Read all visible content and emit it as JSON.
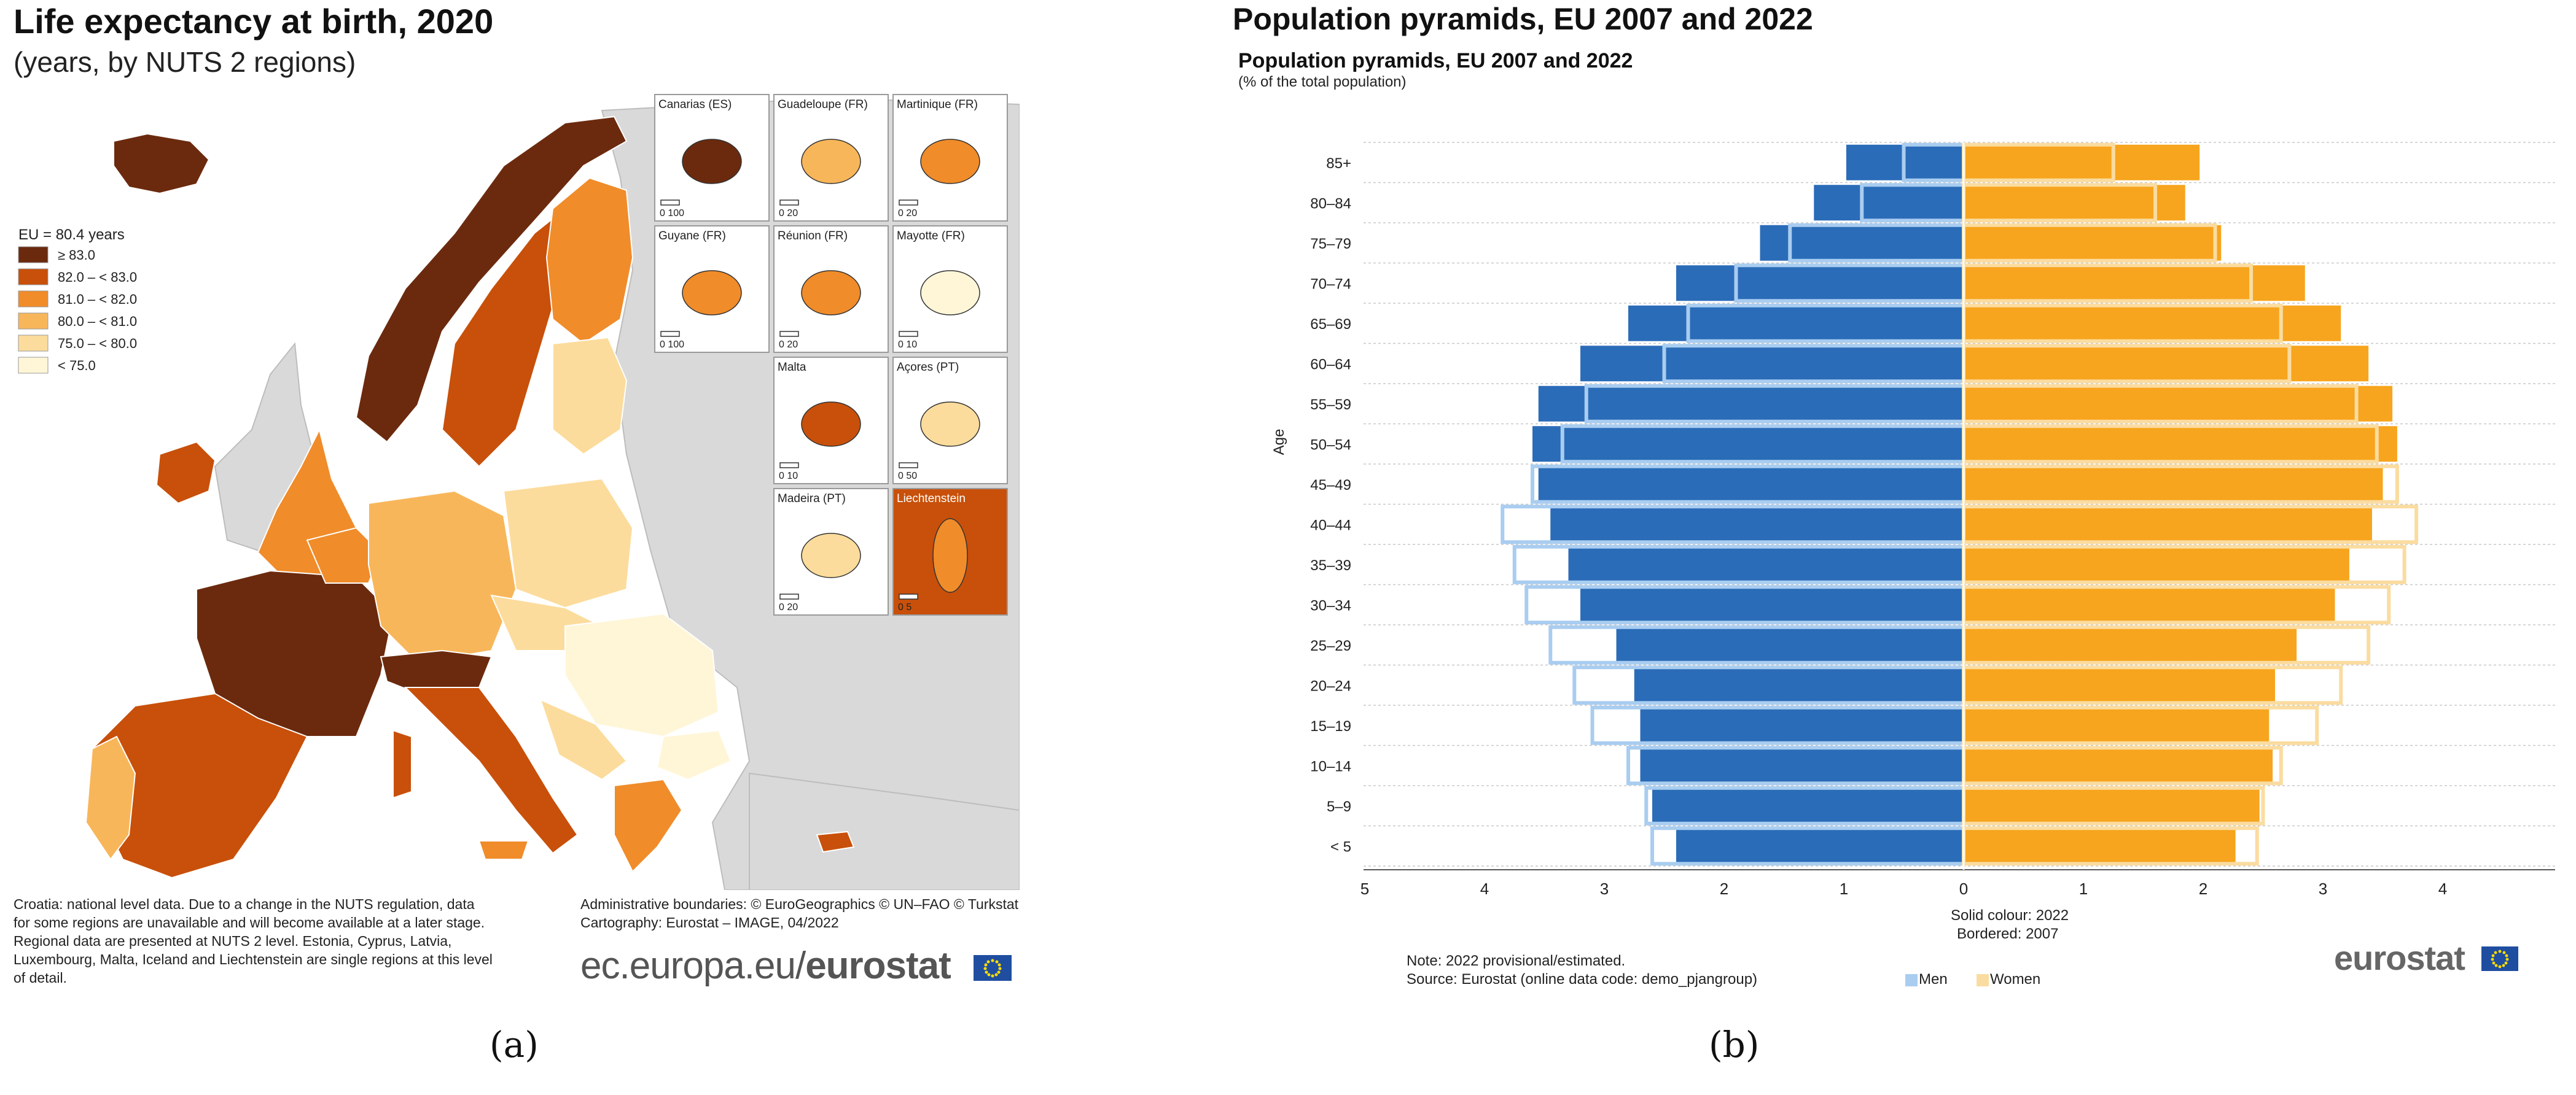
{
  "left_panel": {
    "title": "Life expectancy at birth, 2020",
    "subtitle": "(years, by NUTS 2 regions)",
    "legend_title": "EU = 80.4 years",
    "legend_classes": [
      {
        "label": "≥ 83.0",
        "color": "#6b2a0e"
      },
      {
        "label": "82.0 – < 83.0",
        "color": "#c8500a"
      },
      {
        "label": "81.0 – < 82.0",
        "color": "#f08c2a"
      },
      {
        "label": "80.0 – < 81.0",
        "color": "#f8b65a"
      },
      {
        "label": "75.0 – < 80.0",
        "color": "#fcdc9c"
      },
      {
        "label": "< 75.0",
        "color": "#fff6d8"
      }
    ],
    "insets": [
      {
        "name": "Canarias (ES)",
        "scale": "0  100",
        "fill": "#6b2a0e"
      },
      {
        "name": "Guadeloupe (FR)",
        "scale": "0  20",
        "fill": "#f8b65a"
      },
      {
        "name": "Martinique (FR)",
        "scale": "0  20",
        "fill": "#f08c2a"
      },
      {
        "name": "Guyane (FR)",
        "scale": "0  100",
        "fill": "#f08c2a"
      },
      {
        "name": "Réunion (FR)",
        "scale": "0  20",
        "fill": "#f08c2a"
      },
      {
        "name": "Mayotte (FR)",
        "scale": "0  10",
        "fill": "#fff6d8"
      },
      {
        "name": "Malta",
        "scale": "0  10",
        "fill": "#c8500a"
      },
      {
        "name": "Açores (PT)",
        "scale": "0  50",
        "fill": "#fcdc9c"
      },
      {
        "name": "Madeira (PT)",
        "scale": "0  20",
        "fill": "#fcdc9c"
      },
      {
        "name": "Liechtenstein",
        "scale": "0  5",
        "fill": "#c8500a"
      }
    ],
    "note_lines": [
      "Croatia: national level data. Due to a change in the NUTS regulation, data",
      "for some regions are unavailable and will become available at a later stage.",
      "Regional data are presented at NUTS 2 level. Estonia, Cyprus, Latvia,",
      "Luxembourg, Malta, Iceland and Liechtenstein are single regions at this level",
      "of detail."
    ],
    "admin_lines": [
      "Administrative boundaries: © EuroGeographics © UN–FAO © Turkstat",
      "Cartography: Eurostat – IMAGE, 04/2022"
    ],
    "url_prefix": "ec.europa.eu/",
    "url_brand": "eurostat",
    "caption": "(a)"
  },
  "right_panel": {
    "title": "Population pyramids, EU 2007 and 2022",
    "caption": "(b)",
    "brand": "eurostat",
    "legend_men": "Men",
    "legend_women": "Women",
    "note": "Note: 2022 provisional/estimated.",
    "source": "Source: Eurostat (online data code: demo_pjangroup)",
    "solid_label": "Solid colour: 2022",
    "bordered_label": "Bordered: 2007"
  },
  "colors": {
    "men_2022": "#2b6cb8",
    "men_2007_border": "#a9cdf0",
    "women_2022": "#f7a51e",
    "women_2007_border": "#fbdca0",
    "map_sea": "#ffffff",
    "map_land_other": "#d9d9d9"
  },
  "chart_data": {
    "type": "bar",
    "title": "Population pyramids, EU 2007 and 2022",
    "subtitle": "(% of the total population)",
    "ylabel": "Age",
    "xlabel": "",
    "xlim": [
      -5,
      5
    ],
    "x_ticks": [
      -5,
      -4,
      -3,
      -2,
      -1,
      0,
      1,
      2,
      3,
      4
    ],
    "x_tick_labels": [
      "5",
      "4",
      "3",
      "2",
      "1",
      "0",
      "1",
      "2",
      "3",
      "4"
    ],
    "categories": [
      "< 5",
      "5–9",
      "10–14",
      "15–19",
      "20–24",
      "25–29",
      "30–34",
      "35–39",
      "40–44",
      "45–49",
      "50–54",
      "55–59",
      "60–64",
      "65–69",
      "70–74",
      "75–79",
      "80–84",
      "85+"
    ],
    "series": [
      {
        "name": "Men 2022",
        "values": [
          2.4,
          2.6,
          2.7,
          2.7,
          2.75,
          2.9,
          3.2,
          3.3,
          3.45,
          3.55,
          3.6,
          3.55,
          3.2,
          2.8,
          2.4,
          1.7,
          1.25,
          0.98
        ]
      },
      {
        "name": "Women 2022",
        "values": [
          2.27,
          2.47,
          2.58,
          2.55,
          2.6,
          2.78,
          3.1,
          3.22,
          3.41,
          3.5,
          3.62,
          3.58,
          3.38,
          3.15,
          2.85,
          2.15,
          1.85,
          1.97
        ]
      },
      {
        "name": "Men 2007",
        "values": [
          2.6,
          2.65,
          2.8,
          3.1,
          3.25,
          3.45,
          3.65,
          3.75,
          3.85,
          3.6,
          3.35,
          3.15,
          2.5,
          2.3,
          1.9,
          1.45,
          0.85,
          0.5
        ]
      },
      {
        "name": "Women 2007",
        "values": [
          2.45,
          2.5,
          2.65,
          2.95,
          3.15,
          3.38,
          3.55,
          3.68,
          3.78,
          3.62,
          3.45,
          3.28,
          2.72,
          2.65,
          2.4,
          2.1,
          1.6,
          1.25
        ]
      }
    ],
    "legend": [
      "Men",
      "Women"
    ]
  }
}
